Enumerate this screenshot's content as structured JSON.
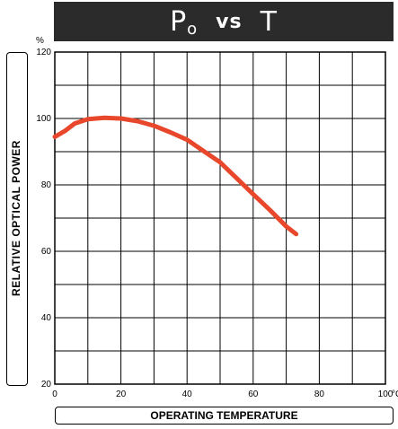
{
  "title": {
    "main": "P",
    "subscript": "o",
    "vs": "vs",
    "var": "T"
  },
  "chart_data": {
    "type": "line",
    "xlabel": "OPERATING TEMPERATURE",
    "ylabel": "RELATIVE OPTICAL POWER",
    "x_unit": "°C",
    "y_unit": "%",
    "xlim": [
      0,
      100
    ],
    "ylim": [
      20,
      120
    ],
    "x_ticks": [
      0,
      20,
      40,
      60,
      80,
      100
    ],
    "y_ticks": [
      20,
      40,
      60,
      80,
      100,
      120
    ],
    "grid": true,
    "series": [
      {
        "color": "#e8472b",
        "x": [
          0,
          3,
          6,
          10,
          15,
          20,
          25,
          30,
          35,
          40,
          45,
          50,
          55,
          60,
          65,
          70,
          73
        ],
        "values": [
          94.5,
          96.2,
          98.5,
          99.8,
          100.2,
          100.0,
          99.2,
          97.8,
          95.8,
          93.6,
          90.2,
          86.8,
          82.0,
          77.2,
          72.5,
          67.5,
          65.2
        ]
      }
    ]
  }
}
